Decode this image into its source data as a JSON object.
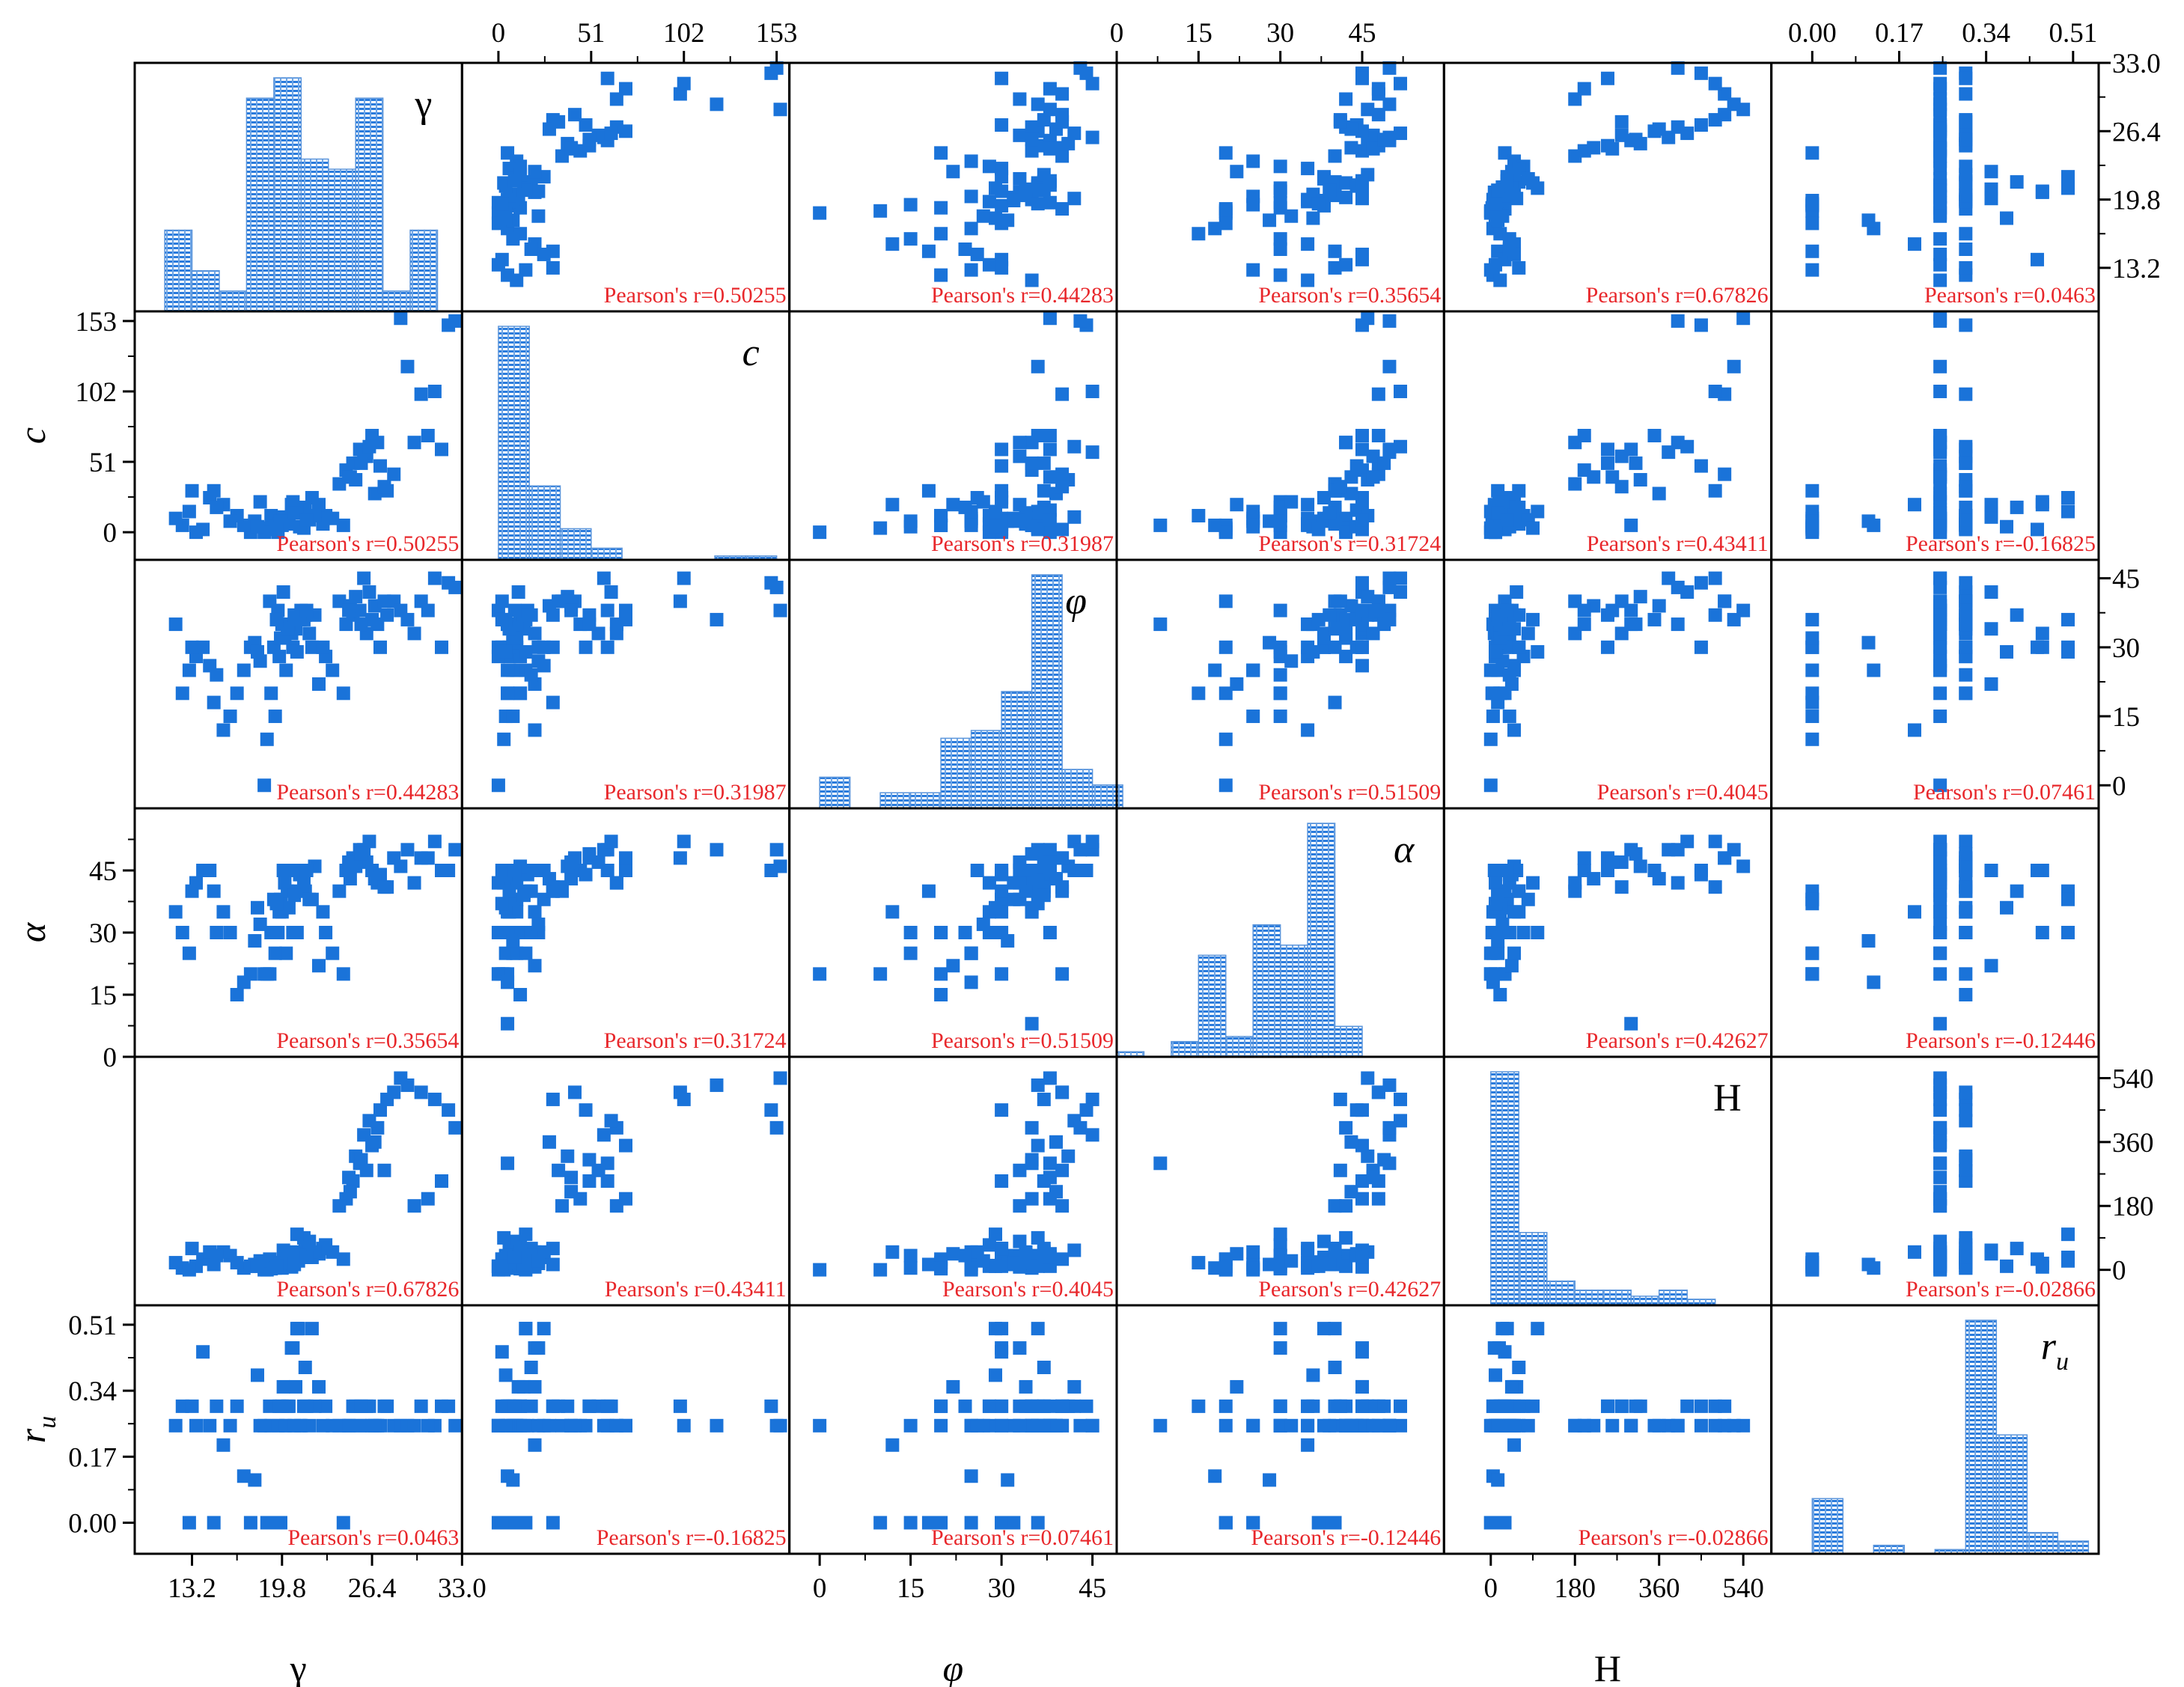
{
  "colors": {
    "points": "#1a73d9",
    "correlation_text": "#e8272b",
    "axes": "#000000"
  },
  "chart_data": {
    "type": "scatter-matrix",
    "title": "",
    "variables": [
      {
        "key": "gamma",
        "symbol": "γ",
        "italic": false,
        "title": "γ",
        "sub": "",
        "min": 9.0,
        "max": 33.0,
        "ticks": [
          13.2,
          19.8,
          26.4,
          33.0
        ],
        "tick_labels": [
          "13.2",
          "19.8",
          "26.4",
          "33.0"
        ],
        "minor": [
          16.5,
          23.1,
          29.7
        ],
        "axis_pos": "bottom"
      },
      {
        "key": "c",
        "symbol": "c",
        "italic": true,
        "title": "c",
        "sub": "",
        "min": -20,
        "max": 160,
        "ticks": [
          0,
          51,
          102,
          153
        ],
        "tick_labels": [
          "0",
          "51",
          "102",
          "153"
        ],
        "minor": [
          25.5,
          76.5,
          127.5
        ],
        "axis_pos": "top"
      },
      {
        "key": "phi",
        "symbol": "φ",
        "italic": true,
        "title": "φ",
        "sub": "",
        "min": -5,
        "max": 49,
        "ticks": [
          0,
          15,
          30,
          45
        ],
        "tick_labels": [
          "0",
          "15",
          "30",
          "45"
        ],
        "minor": [
          7.5,
          22.5,
          37.5
        ],
        "axis_pos": "bottom"
      },
      {
        "key": "alpha",
        "symbol": "α",
        "italic": true,
        "title": "α",
        "sub": "",
        "min": 0,
        "max": 60,
        "ticks": [
          0,
          15,
          30,
          45
        ],
        "tick_labels": [
          "0",
          "15",
          "30",
          "45"
        ],
        "minor": [
          7.5,
          22.5,
          37.5,
          52.5
        ],
        "axis_pos": "top"
      },
      {
        "key": "H",
        "symbol": "H",
        "italic": false,
        "title": "H",
        "sub": "",
        "min": -100,
        "max": 600,
        "ticks": [
          0,
          180,
          360,
          540
        ],
        "tick_labels": [
          "0",
          "180",
          "360",
          "540"
        ],
        "minor": [
          90,
          270,
          450
        ],
        "axis_pos": "bottom"
      },
      {
        "key": "ru",
        "symbol": "r",
        "italic": true,
        "title": "r",
        "sub": "u",
        "min": -0.08,
        "max": 0.56,
        "ticks": [
          0.0,
          0.17,
          0.34,
          0.51
        ],
        "tick_labels": [
          "0.00",
          "0.17",
          "0.34",
          "0.51"
        ],
        "minor": [
          0.085,
          0.255,
          0.425
        ],
        "axis_pos": "top"
      }
    ],
    "correlations": [
      [
        "",
        "0.50255",
        "0.44283",
        "0.35654",
        "0.67826",
        "0.0463"
      ],
      [
        "0.50255",
        "",
        "0.31987",
        "0.31724",
        "0.43411",
        "-0.16825"
      ],
      [
        "0.44283",
        "0.31987",
        "",
        "0.51509",
        "0.4045",
        "0.07461"
      ],
      [
        "0.35654",
        "0.31724",
        "0.51509",
        "",
        "0.42627",
        "-0.12446"
      ],
      [
        "0.67826",
        "0.43411",
        "0.4045",
        "0.42627",
        "",
        "-0.02866"
      ],
      [
        "0.0463",
        "-0.16825",
        "0.07461",
        "-0.12446",
        "-0.02866",
        ""
      ]
    ],
    "correlation_prefix": "Pearson's r=",
    "histograms": [
      {
        "edges": [
          11.2,
          13.2,
          15.2,
          17.2,
          19.2,
          21.2,
          23.2,
          25.2,
          27.2,
          29.2,
          31.2,
          33.2
        ],
        "counts": [
          16,
          8,
          4,
          42,
          46,
          30,
          28,
          42,
          4,
          16,
          0
        ]
      },
      {
        "edges": [
          0,
          17,
          34,
          51,
          68,
          85,
          102,
          119,
          136,
          153
        ],
        "counts": [
          60,
          19,
          8,
          3,
          0,
          0,
          0,
          1,
          1
        ]
      },
      {
        "edges": [
          0,
          5,
          10,
          15,
          20,
          25,
          30,
          35,
          40,
          45,
          50
        ],
        "counts": [
          4,
          0,
          2,
          2,
          9,
          10,
          15,
          30,
          5,
          3
        ]
      },
      {
        "edges": [
          0,
          5,
          10,
          15,
          20,
          25,
          30,
          35,
          40,
          45,
          50,
          55
        ],
        "counts": [
          1,
          0,
          3,
          20,
          4,
          26,
          22,
          46,
          6,
          0,
          0
        ]
      },
      {
        "edges": [
          0,
          60,
          120,
          180,
          240,
          300,
          360,
          420,
          480,
          540
        ],
        "counts": [
          77,
          24,
          8,
          5,
          5,
          3,
          5,
          2,
          0
        ]
      },
      {
        "edges": [
          0.0,
          0.06,
          0.12,
          0.18,
          0.24,
          0.3,
          0.36,
          0.42,
          0.48,
          0.54
        ],
        "counts": [
          13,
          0,
          2,
          0,
          1,
          55,
          28,
          5,
          3
        ]
      }
    ],
    "samples": {
      "gamma": [
        19.5,
        19.8,
        19.2,
        20.1,
        18.9,
        21.0,
        20.5,
        19.0,
        18.7,
        19.6,
        20.0,
        20.8,
        21.5,
        22.0,
        19.3,
        18.5,
        20.3,
        21.2,
        19.9,
        20.6,
        24.5,
        25.0,
        24.0,
        25.5,
        26.0,
        26.4,
        24.8,
        25.2,
        26.8,
        27.0,
        27.5,
        28.0,
        25.8,
        26.2,
        24.3,
        23.5,
        23.0,
        22.5,
        22.8,
        21.8,
        21.4,
        20.9,
        17.5,
        17.0,
        16.5,
        16.0,
        15.5,
        14.8,
        14.0,
        13.5,
        13.0,
        12.5,
        12.0,
        13.2,
        14.5,
        15.0,
        17.8,
        18.2,
        18.0,
        28.5,
        29.0,
        30.0,
        31.0,
        32.0,
        32.5,
        33.0,
        31.5,
        30.5,
        29.5,
        19.7,
        20.2,
        21.1,
        22.2,
        24.7,
        25.6,
        26.6,
        27.3,
        19.4,
        20.7,
        21.6
      ],
      "c": [
        0,
        5,
        10,
        8,
        2,
        15,
        20,
        12,
        3,
        6,
        10,
        14,
        18,
        25,
        4,
        0,
        8,
        16,
        11,
        22,
        45,
        50,
        35,
        60,
        55,
        70,
        40,
        38,
        65,
        48,
        30,
        42,
        58,
        62,
        5,
        10,
        12,
        20,
        6,
        9,
        3,
        15,
        0,
        5,
        12,
        8,
        20,
        30,
        2,
        0,
        15,
        5,
        10,
        30,
        25,
        18,
        8,
        22,
        4,
        155,
        120,
        100,
        102,
        150,
        153,
        5,
        60,
        70,
        65,
        8,
        6,
        4,
        12,
        40,
        50,
        28,
        33,
        2,
        14,
        9
      ],
      "phi": [
        38,
        35,
        30,
        25,
        40,
        36,
        33,
        20,
        10,
        28,
        32,
        34,
        37,
        30,
        15,
        0,
        35,
        38,
        42,
        30,
        35,
        37,
        40,
        38,
        33,
        36,
        39,
        41,
        35,
        30,
        37,
        40,
        45,
        42,
        20,
        25,
        28,
        22,
        30,
        33,
        36,
        29,
        30,
        25,
        20,
        15,
        12,
        18,
        30,
        28,
        25,
        20,
        35,
        30,
        26,
        24,
        31,
        27,
        29,
        38,
        36,
        40,
        45,
        44,
        43,
        35,
        30,
        38,
        33,
        32,
        34,
        36,
        37,
        38,
        35,
        39,
        40,
        36,
        37,
        38
      ],
      "alpha": [
        30,
        35,
        38,
        25,
        20,
        40,
        45,
        30,
        20,
        35,
        42,
        45,
        40,
        38,
        25,
        20,
        36,
        44,
        45,
        30,
        45,
        48,
        40,
        50,
        47,
        45,
        43,
        46,
        42,
        44,
        41,
        48,
        50,
        52,
        20,
        25,
        30,
        22,
        35,
        38,
        42,
        30,
        20,
        18,
        15,
        30,
        35,
        40,
        45,
        42,
        25,
        30,
        35,
        40,
        45,
        30,
        28,
        32,
        36,
        46,
        50,
        48,
        52,
        45,
        50,
        8,
        45,
        48,
        42,
        38,
        40,
        44,
        46,
        47,
        49,
        43,
        41,
        37,
        39,
        45
      ],
      "H": [
        10,
        5,
        20,
        15,
        30,
        25,
        8,
        3,
        0,
        12,
        40,
        50,
        60,
        35,
        5,
        0,
        22,
        45,
        55,
        18,
        200,
        250,
        180,
        300,
        280,
        350,
        220,
        320,
        400,
        450,
        480,
        500,
        380,
        420,
        30,
        50,
        70,
        45,
        60,
        80,
        90,
        100,
        10,
        5,
        20,
        40,
        50,
        15,
        30,
        10,
        0,
        5,
        20,
        60,
        50,
        40,
        15,
        25,
        10,
        540,
        520,
        500,
        480,
        450,
        400,
        300,
        250,
        200,
        180,
        20,
        30,
        40,
        50,
        260,
        310,
        360,
        280,
        10,
        15,
        35
      ],
      "ru": [
        0.25,
        0.3,
        0.0,
        0.25,
        0.3,
        0.5,
        0.45,
        0.25,
        0.0,
        0.3,
        0.25,
        0.35,
        0.4,
        0.5,
        0.0,
        0.25,
        0.3,
        0.25,
        0.35,
        0.45,
        0.25,
        0.3,
        0.25,
        0.25,
        0.3,
        0.25,
        0.25,
        0.3,
        0.25,
        0.25,
        0.3,
        0.25,
        0.25,
        0.3,
        0.0,
        0.25,
        0.3,
        0.35,
        0.25,
        0.25,
        0.3,
        0.5,
        0.0,
        0.12,
        0.3,
        0.25,
        0.2,
        0.0,
        0.44,
        0.25,
        0.0,
        0.3,
        0.25,
        0.3,
        0.25,
        0.3,
        0.11,
        0.25,
        0.38,
        0.25,
        0.25,
        0.3,
        0.25,
        0.3,
        0.25,
        0.25,
        0.3,
        0.25,
        0.25,
        0.0,
        0.3,
        0.25,
        0.3,
        0.25,
        0.3,
        0.25,
        0.3,
        0.0,
        0.25,
        0.3
      ]
    }
  }
}
